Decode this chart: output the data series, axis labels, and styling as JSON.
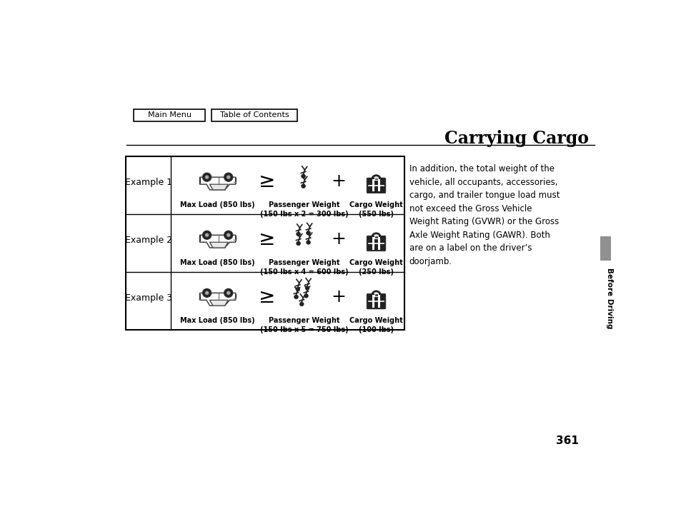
{
  "title": "Carrying Cargo",
  "page_number": "361",
  "nav_buttons": [
    "Main Menu",
    "Table of Contents"
  ],
  "right_text": "In addition, the total weight of the\nvehicle, all occupants, accessories,\ncargo, and trailer tongue load must\nnot exceed the Gross Vehicle\nWeight Rating (GVWR) or the Gross\nAxle Weight Rating (GAWR). Both\nare on a label on the driver’s\ndoorjamb.",
  "side_label": "Before Driving",
  "examples": [
    {
      "label": "Example 1",
      "car_label": "Max Load (850 lbs)",
      "passenger_label": "Passenger Weight\n(150 lbs x 2 = 300 lbs)",
      "cargo_label": "Cargo Weight\n(550 lbs)",
      "num_passengers": 2
    },
    {
      "label": "Example 2",
      "car_label": "Max Load (850 lbs)",
      "passenger_label": "Passenger Weight\n(150 lbs x 4 = 600 lbs)",
      "cargo_label": "Cargo Weight\n(250 lbs)",
      "num_passengers": 4
    },
    {
      "label": "Example 3",
      "car_label": "Max Load (850 lbs)",
      "passenger_label": "Passenger Weight\n(150 lbs x 5 = 750 lbs)",
      "cargo_label": "Cargo Weight\n(100 lbs)",
      "num_passengers": 5
    }
  ],
  "bg_color": "#ffffff",
  "border_color": "#000000",
  "tab_color": "#909090"
}
